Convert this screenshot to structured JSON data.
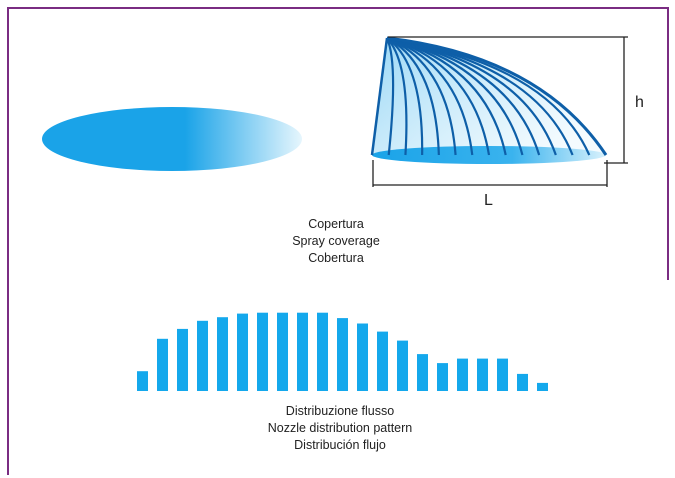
{
  "coverage": {
    "height_label": "h",
    "length_label": "L",
    "caption": [
      "Copertura",
      "Spray coverage",
      "Cobertura"
    ]
  },
  "distribution": {
    "bar_levels": [
      0.22,
      0.58,
      0.69,
      0.78,
      0.82,
      0.86,
      0.87,
      0.87,
      0.87,
      0.87,
      0.81,
      0.75,
      0.66,
      0.56,
      0.41,
      0.31,
      0.36,
      0.36,
      0.36,
      0.19,
      0.09
    ],
    "caption": [
      "Distribuzione flusso",
      "Nozzle distribution pattern",
      "Distribución flujo"
    ]
  },
  "colors": {
    "border": "#7a2c82",
    "spray_blue": "#1aa3e8",
    "spray_dark": "#0e5fa8",
    "bar_blue": "#14a8ec",
    "line": "#222222"
  }
}
